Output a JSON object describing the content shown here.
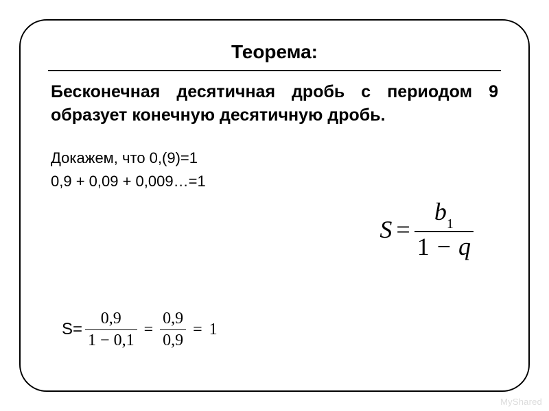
{
  "title": "Теорема:",
  "theorem_text": "Бесконечная десятичная дробь с периодом 9 образует конечную десятичную дробь.",
  "proof": {
    "line1": "Докажем, что 0,(9)=1",
    "line2": "0,9 + 0,09 + 0,009…=1"
  },
  "main_formula": {
    "lhs": "S",
    "eq": "=",
    "num": "b",
    "num_sub": "1",
    "den_left": "1",
    "den_minus": "−",
    "den_right": "q"
  },
  "bottom_formula": {
    "lhs": "S=",
    "frac1_num": "0,9",
    "frac1_den": "1 − 0,1",
    "eq1": "=",
    "frac2_num": "0,9",
    "frac2_den": "0,9",
    "eq2": "=",
    "rhs": "1"
  },
  "watermark": "MyShared",
  "colors": {
    "text": "#000000",
    "background": "#ffffff",
    "watermark": "#dcdcdc",
    "border": "#000000"
  },
  "typography": {
    "title_fontsize": 28,
    "body_fontsize": 25,
    "proof_fontsize": 22,
    "formula_main_fontsize": 36,
    "formula_bottom_fontsize": 24,
    "title_weight": 700,
    "body_weight": 700
  },
  "layout": {
    "slide_border_radius": 40,
    "slide_border_width": 2,
    "slide_inset": 28
  }
}
